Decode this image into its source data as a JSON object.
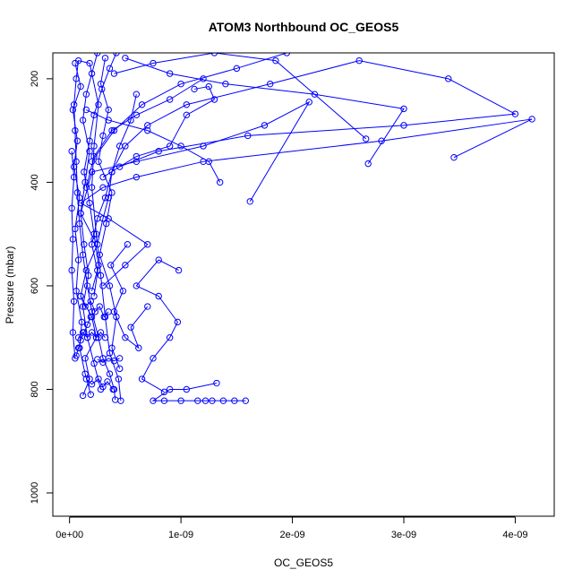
{
  "chart_data": {
    "type": "scatter",
    "title": "ATOM3 Northbound OC_GEOS5",
    "xlabel": "OC_GEOS5",
    "ylabel": "Pressure (mbar)",
    "xlim": [
      -1.5e-10,
      4.35e-09
    ],
    "ylim": [
      1045,
      150
    ],
    "y_reversed": true,
    "grid": false,
    "series_color": "#0000ff",
    "x_ticks": [
      {
        "value": 0,
        "label": "0e+00"
      },
      {
        "value": 1e-09,
        "label": "1e-09"
      },
      {
        "value": 2e-09,
        "label": "2e-09"
      },
      {
        "value": 3e-09,
        "label": "3e-09"
      },
      {
        "value": 4e-09,
        "label": "4e-09"
      }
    ],
    "y_ticks": [
      {
        "value": 200,
        "label": "200"
      },
      {
        "value": 400,
        "label": "400"
      },
      {
        "value": 600,
        "label": "600"
      },
      {
        "value": 800,
        "label": "800"
      },
      {
        "value": 1000,
        "label": "1000"
      }
    ],
    "series": [
      {
        "points": [
          [
            4.1e-10,
            820
          ],
          [
            4e-10,
            800
          ],
          [
            3.6e-10,
            770
          ],
          [
            3e-10,
            740
          ],
          [
            2.6e-10,
            700
          ],
          [
            2e-10,
            650
          ],
          [
            1.6e-10,
            600
          ],
          [
            1.2e-10,
            540
          ],
          [
            9e-11,
            480
          ],
          [
            7e-11,
            420
          ],
          [
            6e-11,
            360
          ],
          [
            5e-11,
            300
          ],
          [
            4e-11,
            250
          ],
          [
            6e-11,
            200
          ],
          [
            8e-11,
            165
          ],
          [
            1.8e-10,
            170
          ],
          [
            2.6e-10,
            250
          ],
          [
            2.2e-10,
            330
          ],
          [
            2e-10,
            410
          ],
          [
            2.4e-10,
            500
          ],
          [
            2.8e-10,
            580
          ],
          [
            3.2e-10,
            660
          ],
          [
            3.6e-10,
            730
          ],
          [
            4.4e-10,
            780
          ],
          [
            4.6e-10,
            822
          ]
        ]
      },
      {
        "points": [
          [
            1.2e-10,
            812
          ],
          [
            1.8e-10,
            780
          ],
          [
            1.4e-10,
            740
          ],
          [
            2.4e-10,
            700
          ],
          [
            2e-10,
            660
          ],
          [
            1e-10,
            620
          ],
          [
            1.5e-10,
            570
          ],
          [
            2.5e-10,
            520
          ],
          [
            3e-10,
            470
          ],
          [
            3.5e-10,
            430
          ],
          [
            3.8e-10,
            380
          ],
          [
            5e-10,
            330
          ],
          [
            7e-10,
            290
          ],
          [
            1.05e-09,
            250
          ],
          [
            1.8e-09,
            210
          ],
          [
            2.6e-09,
            165
          ],
          [
            3.4e-09,
            200
          ],
          [
            4e-09,
            268
          ],
          [
            3e-09,
            290
          ],
          [
            1.6e-09,
            310
          ],
          [
            8e-10,
            340
          ],
          [
            4.5e-10,
            370
          ]
        ]
      },
      {
        "points": [
          [
            3.45e-09,
            352
          ],
          [
            4.15e-09,
            278
          ],
          [
            2.8e-09,
            320
          ],
          [
            1.2e-09,
            360
          ],
          [
            6e-10,
            390
          ],
          [
            3e-10,
            410
          ],
          [
            1e-10,
            440
          ],
          [
            3.5e-10,
            470
          ],
          [
            7e-10,
            520
          ],
          [
            5e-10,
            560
          ],
          [
            3e-10,
            600
          ]
        ]
      },
      {
        "points": [
          [
            1.62e-09,
            437
          ],
          [
            2.15e-09,
            245
          ],
          [
            1.75e-09,
            290
          ],
          [
            1.2e-09,
            330
          ],
          [
            6e-10,
            360
          ],
          [
            2e-10,
            380
          ],
          [
            1e-10,
            460
          ],
          [
            2.2e-10,
            510
          ]
        ]
      },
      {
        "points": [
          [
            2.68e-09,
            364
          ],
          [
            3e-09,
            258
          ],
          [
            2.2e-09,
            230
          ],
          [
            1.4e-09,
            210
          ],
          [
            9e-10,
            190
          ],
          [
            5e-10,
            160
          ]
        ]
      },
      {
        "points": [
          [
            2.66e-09,
            316
          ],
          [
            1.85e-09,
            165
          ],
          [
            1.3e-09,
            150
          ],
          [
            7.5e-10,
            170
          ],
          [
            4e-10,
            190
          ]
        ]
      },
      {
        "points": [
          [
            1.35e-09,
            400
          ],
          [
            1.25e-09,
            360
          ],
          [
            1e-09,
            330
          ],
          [
            7e-10,
            300
          ],
          [
            3.5e-10,
            280
          ],
          [
            1.5e-10,
            260
          ]
        ]
      },
      {
        "points": [
          [
            1.58e-09,
            822
          ],
          [
            1.48e-09,
            822
          ],
          [
            1.38e-09,
            822
          ],
          [
            1.28e-09,
            822
          ],
          [
            1.22e-09,
            822
          ],
          [
            1.15e-09,
            822
          ],
          [
            1e-09,
            822
          ],
          [
            8.5e-10,
            822
          ],
          [
            7.5e-10,
            822
          ],
          [
            9e-10,
            800
          ],
          [
            1.05e-09,
            800
          ],
          [
            1.32e-09,
            788
          ]
        ]
      },
      {
        "points": [
          [
            9.8e-10,
            570
          ],
          [
            8e-10,
            550
          ],
          [
            6e-10,
            600
          ],
          [
            8e-10,
            620
          ],
          [
            9.7e-10,
            670
          ],
          [
            9e-10,
            700
          ],
          [
            7.5e-10,
            740
          ],
          [
            6.5e-10,
            780
          ],
          [
            8.5e-10,
            805
          ]
        ]
      },
      {
        "points": [
          [
            1.12e-09,
            220
          ],
          [
            1.25e-09,
            215
          ],
          [
            1.3e-09,
            240
          ],
          [
            1.05e-09,
            270
          ],
          [
            9e-10,
            330
          ],
          [
            6e-10,
            350
          ],
          [
            3e-10,
            390
          ]
        ]
      },
      {
        "points": [
          [
            2.5e-10,
            150
          ],
          [
            2e-10,
            190
          ],
          [
            1.5e-10,
            230
          ],
          [
            1.2e-10,
            280
          ],
          [
            1.8e-10,
            340
          ],
          [
            1.4e-10,
            400
          ],
          [
            1e-10,
            460
          ],
          [
            1.3e-10,
            520
          ],
          [
            1.7e-10,
            580
          ],
          [
            1.2e-10,
            640
          ],
          [
            1.6e-10,
            700
          ],
          [
            2.2e-10,
            750
          ],
          [
            2.8e-10,
            800
          ]
        ]
      },
      {
        "points": [
          [
            5e-11,
            170
          ],
          [
            1e-10,
            215
          ],
          [
            3e-11,
            260
          ],
          [
            7e-11,
            320
          ],
          [
            4e-11,
            370
          ],
          [
            9e-11,
            430
          ],
          [
            5e-11,
            490
          ],
          [
            8e-11,
            550
          ],
          [
            6e-11,
            610
          ],
          [
            1.1e-10,
            670
          ],
          [
            9e-11,
            720
          ],
          [
            1.4e-10,
            770
          ],
          [
            1.9e-10,
            810
          ]
        ]
      },
      {
        "points": [
          [
            3.2e-10,
            160
          ],
          [
            2.8e-10,
            210
          ],
          [
            3.5e-10,
            260
          ],
          [
            3e-10,
            310
          ],
          [
            2.6e-10,
            360
          ],
          [
            3.8e-10,
            420
          ],
          [
            3.3e-10,
            480
          ],
          [
            2.7e-10,
            540
          ],
          [
            3.6e-10,
            600
          ],
          [
            4.2e-10,
            660
          ],
          [
            3.8e-10,
            720
          ],
          [
            4.5e-10,
            760
          ]
        ]
      },
      {
        "points": [
          [
            1.2e-09,
            200
          ],
          [
            9e-10,
            240
          ],
          [
            6e-10,
            270
          ],
          [
            3.8e-10,
            300
          ],
          [
            2.2e-10,
            350
          ],
          [
            1.5e-10,
            410
          ]
        ]
      },
      {
        "points": [
          [
            1.95e-09,
            150
          ],
          [
            1.5e-09,
            180
          ],
          [
            1e-09,
            210
          ],
          [
            6.5e-10,
            250
          ],
          [
            4e-10,
            300
          ],
          [
            2e-10,
            360
          ]
        ]
      },
      {
        "points": [
          [
            7e-10,
            640
          ],
          [
            5.5e-10,
            680
          ],
          [
            6.2e-10,
            720
          ],
          [
            5e-10,
            700
          ],
          [
            4e-10,
            650
          ],
          [
            4.8e-10,
            610
          ],
          [
            3.7e-10,
            560
          ],
          [
            5.2e-10,
            520
          ]
        ]
      },
      {
        "points": [
          [
            2e-11,
            340
          ],
          [
            4e-11,
            390
          ],
          [
            2e-11,
            450
          ],
          [
            3e-11,
            510
          ],
          [
            2e-11,
            570
          ],
          [
            4e-11,
            630
          ],
          [
            3e-11,
            690
          ],
          [
            5e-11,
            740
          ]
        ]
      },
      {
        "points": [
          [
            8e-11,
            700
          ],
          [
            1.2e-10,
            690
          ],
          [
            1.6e-10,
            700
          ],
          [
            2e-10,
            690
          ],
          [
            2.4e-10,
            700
          ],
          [
            2.8e-10,
            690
          ],
          [
            3.2e-10,
            700
          ]
        ]
      },
      {
        "points": [
          [
            1e-10,
            620
          ],
          [
            1.4e-10,
            640
          ],
          [
            1.9e-10,
            630
          ],
          [
            2.3e-10,
            650
          ],
          [
            2.7e-10,
            640
          ],
          [
            3.1e-10,
            660
          ],
          [
            3.5e-10,
            650
          ]
        ]
      },
      {
        "points": [
          [
            1.5e-10,
            780
          ],
          [
            2e-10,
            790
          ],
          [
            2.6e-10,
            780
          ],
          [
            3e-10,
            795
          ],
          [
            3.4e-10,
            785
          ],
          [
            3.9e-10,
            800
          ]
        ]
      },
      {
        "points": [
          [
            4.5e-10,
            740
          ],
          [
            4e-10,
            745
          ],
          [
            3.5e-10,
            740
          ],
          [
            3e-10,
            748
          ],
          [
            2.5e-10,
            742
          ]
        ]
      },
      {
        "points": [
          [
            6e-11,
            735
          ],
          [
            8e-11,
            720
          ],
          [
            1e-10,
            705
          ],
          [
            1.3e-10,
            690
          ],
          [
            1.6e-10,
            675
          ],
          [
            1.9e-10,
            660
          ]
        ]
      },
      {
        "points": [
          [
            6e-10,
            230
          ],
          [
            5.5e-10,
            280
          ],
          [
            4.5e-10,
            330
          ],
          [
            3.8e-10,
            380
          ],
          [
            3.2e-10,
            430
          ],
          [
            2.5e-10,
            470
          ],
          [
            2e-10,
            520
          ],
          [
            2.5e-10,
            570
          ],
          [
            2e-10,
            610
          ]
        ]
      },
      {
        "points": [
          [
            4.2e-10,
            150
          ],
          [
            3.6e-10,
            180
          ],
          [
            2.9e-10,
            220
          ],
          [
            2.2e-10,
            270
          ],
          [
            1.8e-10,
            320
          ],
          [
            1.3e-10,
            380
          ],
          [
            1.8e-10,
            440
          ],
          [
            2.2e-10,
            500
          ],
          [
            2.6e-10,
            560
          ],
          [
            2.2e-10,
            620
          ]
        ]
      }
    ]
  }
}
